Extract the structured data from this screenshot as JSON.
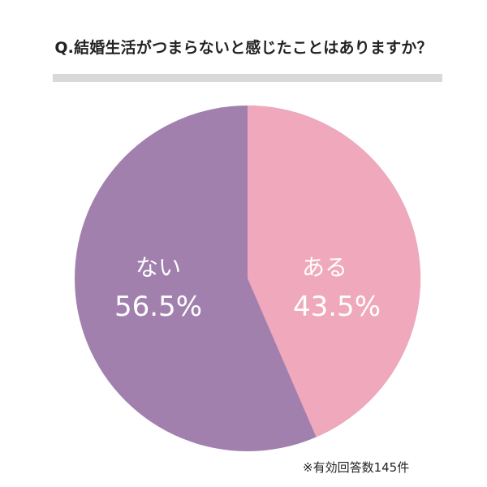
{
  "title": "Q.結婚生活がつまらないと感じたことはありますか？",
  "note": "※有効回答数145件",
  "colors": {
    "aru": "#EFA8BC",
    "nai": "#A180AE",
    "divider": "#D9D9D9"
  },
  "labels": {
    "aru": {
      "category": "ある",
      "percent": "43.5%"
    },
    "nai": {
      "category": "ない",
      "percent": "56.5%"
    }
  },
  "chart_data": {
    "type": "pie",
    "title": "Q.結婚生活がつまらないと感じたことはありますか？",
    "categories": [
      "ある",
      "ない"
    ],
    "values": [
      43.5,
      56.5
    ],
    "unit": "%",
    "colors": [
      "#EFA8BC",
      "#A180AE"
    ],
    "start_angle": "12 o'clock, clockwise",
    "legend": "none (inline labels)",
    "annotation": "※有効回答数145件",
    "sample_size": 145
  }
}
